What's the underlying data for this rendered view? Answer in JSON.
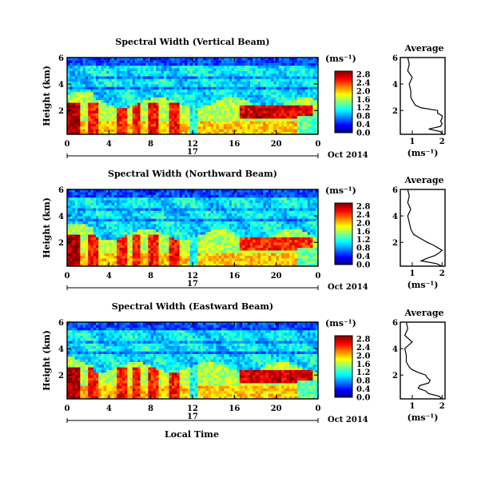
{
  "figure": {
    "xlabel": "Local Time",
    "colorbar_unit": "(ms⁻¹)",
    "avg_xlabel": "(ms⁻¹)",
    "avg_title": "Average",
    "date_label": "Oct 2014",
    "day_label": "17"
  },
  "chart_data": [
    {
      "type": "heatmap",
      "title": "Spectral Width (Vertical Beam)",
      "ylabel": "Height (km)",
      "x_ticks": [
        "0",
        "4",
        "8",
        "12",
        "16",
        "20",
        "0"
      ],
      "xlim": [
        0,
        24
      ],
      "y_ticks": [
        "6",
        "4",
        "2"
      ],
      "ylim": [
        0.2,
        6
      ],
      "colorbar_ticks": [
        "2.8",
        "2.4",
        "2.0",
        "1.6",
        "1.2",
        "0.8",
        "0.4",
        "0.0"
      ],
      "colorbar_range": [
        0,
        2.8
      ],
      "average_profile": {
        "x_ticks": [
          "1",
          "2"
        ],
        "xlim": [
          0.6,
          2.1
        ],
        "y_ticks": [
          "6",
          "4",
          "2"
        ],
        "ylim": [
          0.2,
          6
        ],
        "height": [
          0.2,
          0.4,
          0.6,
          0.8,
          1.0,
          1.2,
          1.4,
          1.6,
          1.8,
          2.0,
          2.2,
          2.4,
          2.6,
          2.8,
          3.0,
          3.5,
          4.0,
          4.5,
          5.0,
          5.5,
          6.0
        ],
        "width": [
          2.0,
          1.95,
          1.55,
          1.95,
          2.0,
          1.95,
          2.0,
          2.0,
          1.85,
          1.85,
          1.3,
          1.1,
          1.05,
          1.0,
          0.95,
          0.95,
          0.9,
          1.0,
          0.85,
          0.9,
          0.85
        ]
      }
    },
    {
      "type": "heatmap",
      "title": "Spectral Width (Northward Beam)",
      "ylabel": "Height (km)",
      "x_ticks": [
        "0",
        "4",
        "8",
        "12",
        "16",
        "20",
        "0"
      ],
      "xlim": [
        0,
        24
      ],
      "y_ticks": [
        "6",
        "4",
        "2"
      ],
      "ylim": [
        0.2,
        6
      ],
      "colorbar_ticks": [
        "2.8",
        "2.4",
        "2.0",
        "1.6",
        "1.2",
        "0.8",
        "0.4",
        "0.0"
      ],
      "colorbar_range": [
        0,
        2.8
      ],
      "average_profile": {
        "x_ticks": [
          "1",
          "2"
        ],
        "xlim": [
          0.6,
          2.1
        ],
        "y_ticks": [
          "6",
          "4",
          "2"
        ],
        "ylim": [
          0.2,
          6
        ],
        "height": [
          0.2,
          0.4,
          0.6,
          0.8,
          1.0,
          1.2,
          1.4,
          1.6,
          1.8,
          2.0,
          2.2,
          2.4,
          2.6,
          2.8,
          3.0,
          3.5,
          4.0,
          4.5,
          5.0,
          5.5,
          6.0
        ],
        "width": [
          2.0,
          1.8,
          1.3,
          1.5,
          1.75,
          1.9,
          2.0,
          1.85,
          1.7,
          1.5,
          1.35,
          1.2,
          1.05,
          1.0,
          0.95,
          0.9,
          0.85,
          0.95,
          0.85,
          0.9,
          0.85
        ]
      }
    },
    {
      "type": "heatmap",
      "title": "Spectral Width (Eastward Beam)",
      "ylabel": "Height (km)",
      "x_ticks": [
        "0",
        "4",
        "8",
        "12",
        "16",
        "20",
        "0"
      ],
      "xlim": [
        0,
        24
      ],
      "y_ticks": [
        "6",
        "4",
        "2"
      ],
      "ylim": [
        0.2,
        6
      ],
      "colorbar_ticks": [
        "2.8",
        "2.4",
        "2.0",
        "1.6",
        "1.2",
        "0.8",
        "0.4",
        "0.0"
      ],
      "colorbar_range": [
        0,
        2.8
      ],
      "average_profile": {
        "x_ticks": [
          "1",
          "2"
        ],
        "xlim": [
          0.6,
          2.1
        ],
        "y_ticks": [
          "6",
          "4",
          "2"
        ],
        "ylim": [
          0.2,
          6
        ],
        "height": [
          0.2,
          0.4,
          0.6,
          0.8,
          1.0,
          1.2,
          1.4,
          1.6,
          1.8,
          2.0,
          2.2,
          2.4,
          2.6,
          2.8,
          3.0,
          3.5,
          4.0,
          4.5,
          5.0,
          5.5,
          6.0
        ],
        "width": [
          2.0,
          1.9,
          1.55,
          1.45,
          1.2,
          1.25,
          1.55,
          1.6,
          1.5,
          1.45,
          1.2,
          1.0,
          0.9,
          0.85,
          0.8,
          0.8,
          0.75,
          1.0,
          0.75,
          0.85,
          0.8
        ]
      }
    }
  ]
}
